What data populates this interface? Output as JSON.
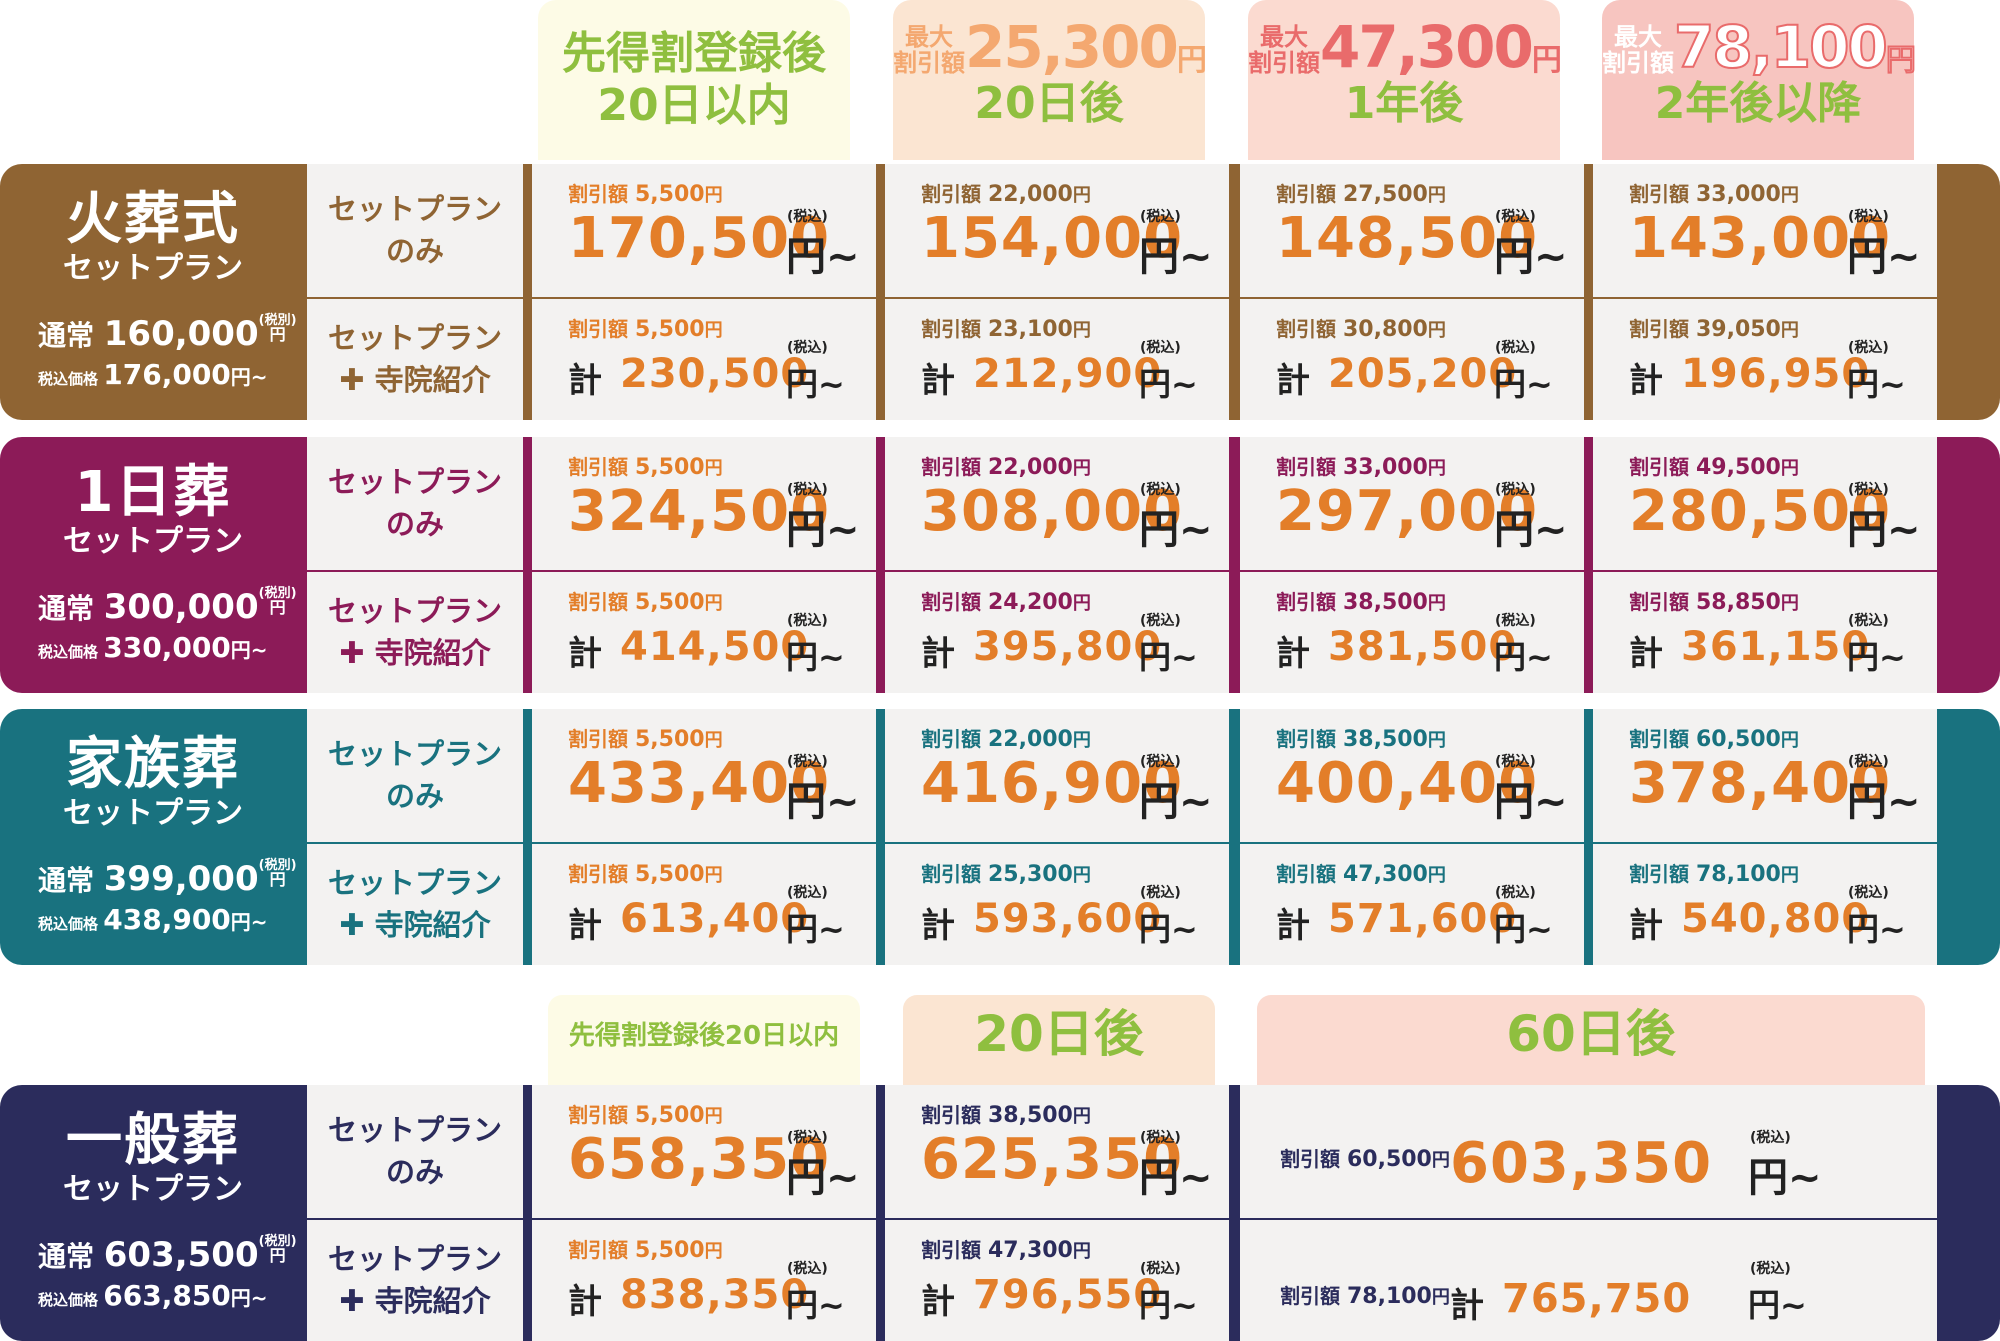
{
  "colors": {
    "cremation": "#8f6433",
    "oneday": "#8c1b58",
    "family": "#19727f",
    "general": "#2b2c5c",
    "price_orange": "#e37e29",
    "cell_bg": "#f3f2f1",
    "green_text": "#8fbf3f",
    "pink_text": "#e96b6b"
  },
  "columns": [
    {
      "line1": "先得割登録後",
      "line2": "20日以内",
      "bg": "#fdfbe6",
      "fg": "#8fbf3f"
    },
    {
      "max_label": "最大\n割引額",
      "max_amount": "25,300",
      "yen": "円",
      "period": "20日後",
      "bg": "#fbe5d2",
      "fg_amount": "#f4a870",
      "fg_period": "#8fbf3f"
    },
    {
      "max_label": "最大\n割引額",
      "max_amount": "47,300",
      "yen": "円",
      "period": "1年後",
      "bg": "#fbdad0",
      "fg_amount": "#e96b6b",
      "fg_period": "#8fbf3f"
    },
    {
      "max_label": "最大\n割引額",
      "max_amount": "78,100",
      "yen": "円",
      "period": "2年後以降",
      "bg": "#f7c5c0",
      "fg_amount": "#ffffff",
      "fg_period": "#8fbf3f"
    }
  ],
  "bottom_columns": [
    {
      "label": "先得割登録後20日以内",
      "bg": "#fdfbe6",
      "fg": "#8fbf3f"
    },
    {
      "label": "20日後",
      "bg": "#fbe5d2",
      "fg": "#8fbf3f"
    },
    {
      "label": "60日後",
      "bg": "#fbdad0",
      "fg": "#8fbf3f"
    }
  ],
  "common": {
    "normal": "通常",
    "tax_excl": "(税別)",
    "yen": "円",
    "tax_incl_price": "税込価格",
    "plan_only_1": "セットプラン",
    "plan_only_2": "のみ",
    "plan_temple_1": "セットプラン",
    "plan_temple_2": "寺院紹介",
    "plus": "✚",
    "discount": "割引額",
    "tax_in": "(税込)",
    "kei": "計",
    "yen_from": "円~"
  },
  "plans": [
    {
      "name": "火葬式",
      "sub": "セットプラン",
      "normal_price": "160,000",
      "tax_price": "176,000",
      "tax_price_suffix": "円~",
      "only": [
        {
          "disc": "5,500",
          "price": "170,500"
        },
        {
          "disc": "22,000",
          "price": "154,000"
        },
        {
          "disc": "27,500",
          "price": "148,500"
        },
        {
          "disc": "33,000",
          "price": "143,000"
        }
      ],
      "temple": [
        {
          "disc": "5,500",
          "price": "230,500"
        },
        {
          "disc": "23,100",
          "price": "212,900"
        },
        {
          "disc": "30,800",
          "price": "205,200"
        },
        {
          "disc": "39,050",
          "price": "196,950"
        }
      ]
    },
    {
      "name": "1日葬",
      "sub": "セットプラン",
      "normal_price": "300,000",
      "tax_price": "330,000",
      "tax_price_suffix": "円~",
      "only": [
        {
          "disc": "5,500",
          "price": "324,500"
        },
        {
          "disc": "22,000",
          "price": "308,000"
        },
        {
          "disc": "33,000",
          "price": "297,000"
        },
        {
          "disc": "49,500",
          "price": "280,500"
        }
      ],
      "temple": [
        {
          "disc": "5,500",
          "price": "414,500"
        },
        {
          "disc": "24,200",
          "price": "395,800"
        },
        {
          "disc": "38,500",
          "price": "381,500"
        },
        {
          "disc": "58,850",
          "price": "361,150"
        }
      ]
    },
    {
      "name": "家族葬",
      "sub": "セットプラン",
      "normal_price": "399,000",
      "tax_price": "438,900",
      "tax_price_suffix": "円~",
      "only": [
        {
          "disc": "5,500",
          "price": "433,400"
        },
        {
          "disc": "22,000",
          "price": "416,900"
        },
        {
          "disc": "38,500",
          "price": "400,400"
        },
        {
          "disc": "60,500",
          "price": "378,400"
        }
      ],
      "temple": [
        {
          "disc": "5,500",
          "price": "613,400"
        },
        {
          "disc": "25,300",
          "price": "593,600"
        },
        {
          "disc": "47,300",
          "price": "571,600"
        },
        {
          "disc": "78,100",
          "price": "540,800"
        }
      ]
    },
    {
      "name": "一般葬",
      "sub": "セットプラン",
      "normal_price": "603,500",
      "tax_price": "663,850",
      "tax_price_suffix": "円~",
      "only": [
        {
          "disc": "5,500",
          "price": "658,350"
        },
        {
          "disc": "38,500",
          "price": "625,350"
        },
        {
          "disc": "60,500",
          "price": "603,350"
        }
      ],
      "temple": [
        {
          "disc": "5,500",
          "price": "838,350"
        },
        {
          "disc": "47,300",
          "price": "796,550"
        },
        {
          "disc": "78,100",
          "price": "765,750"
        }
      ]
    }
  ]
}
